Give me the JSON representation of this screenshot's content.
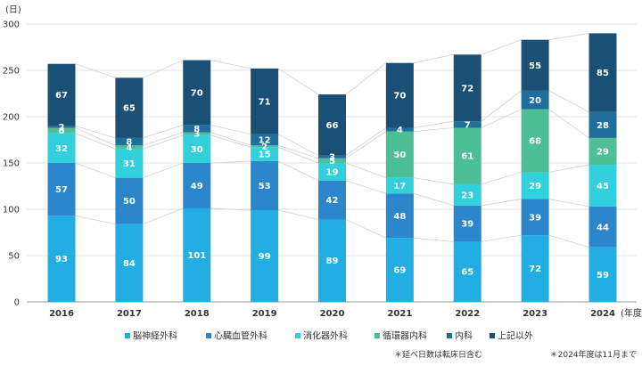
{
  "chart_data": {
    "type": "bar",
    "stacked": true,
    "y_unit": "(日)",
    "x_unit": "(年度)",
    "categories": [
      "2016",
      "2017",
      "2018",
      "2019",
      "2020",
      "2021",
      "2022",
      "2023",
      "2024"
    ],
    "ylim": [
      0,
      300
    ],
    "yticks": [
      0,
      50,
      100,
      150,
      200,
      250,
      300
    ],
    "grid": true,
    "legend_position": "bottom",
    "series": [
      {
        "name": "脳神経外科",
        "color": "#22aee3",
        "values": [
          93,
          84,
          101,
          99,
          89,
          69,
          65,
          72,
          59
        ]
      },
      {
        "name": "心臓血管外科",
        "color": "#2b86cc",
        "values": [
          57,
          50,
          49,
          53,
          42,
          48,
          39,
          39,
          44
        ]
      },
      {
        "name": "消化器外科",
        "color": "#32d0dc",
        "values": [
          32,
          31,
          30,
          15,
          19,
          17,
          23,
          29,
          45
        ]
      },
      {
        "name": "循環器内科",
        "color": "#4cbf96",
        "values": [
          6,
          4,
          3,
          2,
          5,
          50,
          61,
          68,
          29
        ]
      },
      {
        "name": "内科",
        "color": "#1e6f9c",
        "values": [
          2,
          8,
          8,
          12,
          3,
          4,
          7,
          20,
          28
        ]
      },
      {
        "name": "上記以外",
        "color": "#1a4f76",
        "values": [
          67,
          65,
          70,
          71,
          66,
          70,
          72,
          55,
          85
        ]
      }
    ],
    "notes": [
      "＊延べ日数は転床日含む",
      "＊2024年度は11月まで"
    ]
  }
}
